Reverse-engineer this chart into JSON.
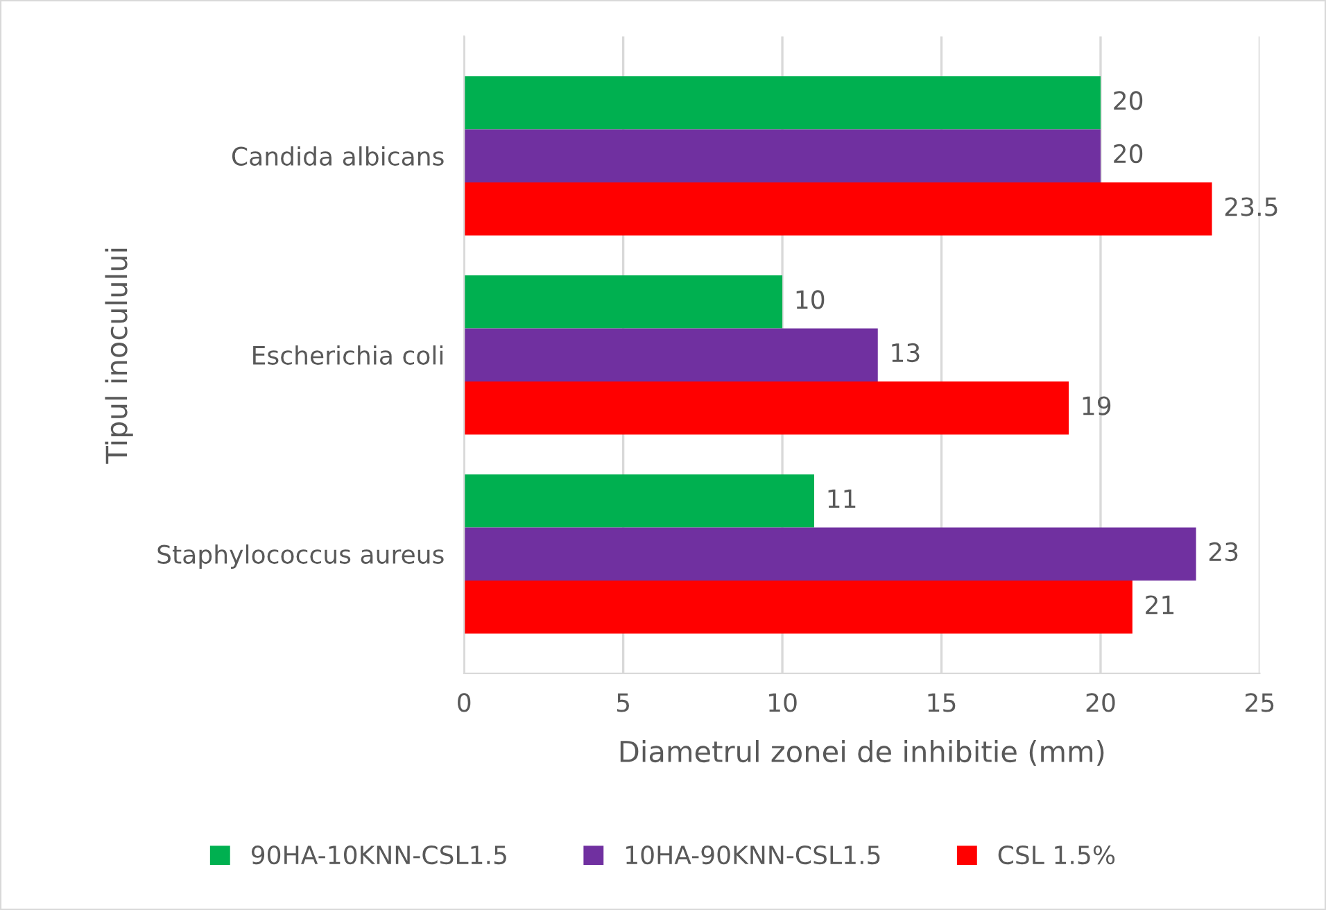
{
  "chart_data": {
    "type": "bar",
    "orientation": "horizontal",
    "categories": [
      "Candida albicans",
      "Escherichia coli",
      "Staphylococcus aureus"
    ],
    "series": [
      {
        "name": "90HA-10KNN-CSL1.5",
        "color": "#00b050",
        "values": [
          20,
          10,
          11
        ]
      },
      {
        "name": "10HA-90KNN-CSL1.5",
        "color": "#7030a0",
        "values": [
          20,
          13,
          23
        ]
      },
      {
        "name": "CSL 1.5%",
        "color": "#ff0000",
        "values": [
          23.5,
          19,
          21
        ]
      }
    ],
    "xlabel": "Diametrul zonei de inhibitie (mm)",
    "ylabel": "Tipul inoculului",
    "xlim": [
      0,
      25
    ],
    "xticks": [
      0,
      5,
      10,
      15,
      20,
      25
    ],
    "grid": "x",
    "legend": "bottom",
    "data_labels": true
  }
}
